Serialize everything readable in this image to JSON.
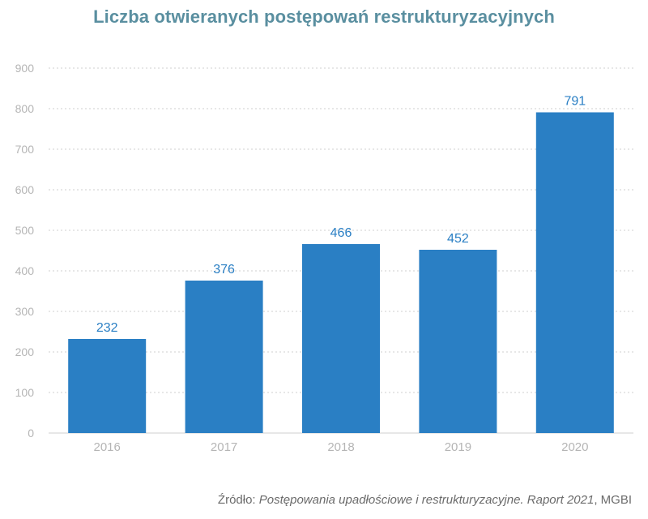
{
  "chart_data": {
    "type": "bar",
    "title": "Liczba otwieranych postępowań restrukturyzacyjnych",
    "categories": [
      "2016",
      "2017",
      "2018",
      "2019",
      "2020"
    ],
    "values": [
      232,
      376,
      466,
      452,
      791
    ],
    "data_labels": [
      "232",
      "376",
      "466",
      "452",
      "791"
    ],
    "ylim": [
      0,
      900
    ],
    "yticks": [
      "0",
      "100",
      "200",
      "300",
      "400",
      "500",
      "600",
      "700",
      "800",
      "900"
    ],
    "xlabel": "",
    "ylabel": "",
    "grid": true,
    "bar_color": "#2a7fc4"
  },
  "source": {
    "prefix": "Źródło: ",
    "italic": "Postępowania upadłościowe i restrukturyzacyjne. Raport 2021",
    "suffix": ", MGBI"
  },
  "colors": {
    "title": "#5a8fa0",
    "bar": "#2a7fc4",
    "value_label": "#2a7fc4",
    "tick_label": "#b5b5b5",
    "grid": "#cfcfcf"
  }
}
